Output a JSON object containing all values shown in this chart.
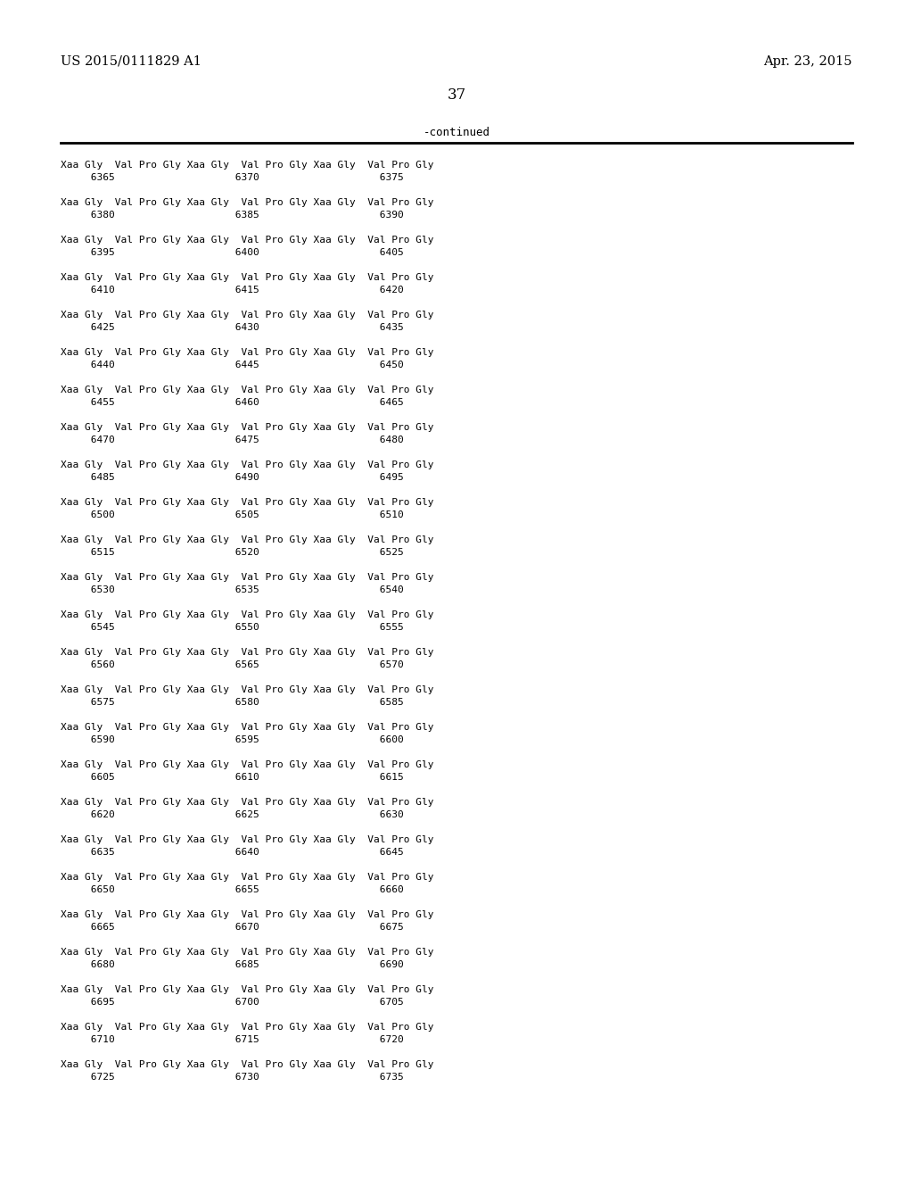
{
  "top_left": "US 2015/0111829 A1",
  "top_right": "Apr. 23, 2015",
  "page_number": "37",
  "continued_label": "-continued",
  "background_color": "#ffffff",
  "text_color": "#000000",
  "rows": [
    {
      "seq": "Xaa Gly  Val Pro Gly Xaa Gly  Val Pro Gly Xaa Gly  Val Pro Gly",
      "nums": "     6365                    6370                    6375"
    },
    {
      "seq": "Xaa Gly  Val Pro Gly Xaa Gly  Val Pro Gly Xaa Gly  Val Pro Gly",
      "nums": "     6380                    6385                    6390"
    },
    {
      "seq": "Xaa Gly  Val Pro Gly Xaa Gly  Val Pro Gly Xaa Gly  Val Pro Gly",
      "nums": "     6395                    6400                    6405"
    },
    {
      "seq": "Xaa Gly  Val Pro Gly Xaa Gly  Val Pro Gly Xaa Gly  Val Pro Gly",
      "nums": "     6410                    6415                    6420"
    },
    {
      "seq": "Xaa Gly  Val Pro Gly Xaa Gly  Val Pro Gly Xaa Gly  Val Pro Gly",
      "nums": "     6425                    6430                    6435"
    },
    {
      "seq": "Xaa Gly  Val Pro Gly Xaa Gly  Val Pro Gly Xaa Gly  Val Pro Gly",
      "nums": "     6440                    6445                    6450"
    },
    {
      "seq": "Xaa Gly  Val Pro Gly Xaa Gly  Val Pro Gly Xaa Gly  Val Pro Gly",
      "nums": "     6455                    6460                    6465"
    },
    {
      "seq": "Xaa Gly  Val Pro Gly Xaa Gly  Val Pro Gly Xaa Gly  Val Pro Gly",
      "nums": "     6470                    6475                    6480"
    },
    {
      "seq": "Xaa Gly  Val Pro Gly Xaa Gly  Val Pro Gly Xaa Gly  Val Pro Gly",
      "nums": "     6485                    6490                    6495"
    },
    {
      "seq": "Xaa Gly  Val Pro Gly Xaa Gly  Val Pro Gly Xaa Gly  Val Pro Gly",
      "nums": "     6500                    6505                    6510"
    },
    {
      "seq": "Xaa Gly  Val Pro Gly Xaa Gly  Val Pro Gly Xaa Gly  Val Pro Gly",
      "nums": "     6515                    6520                    6525"
    },
    {
      "seq": "Xaa Gly  Val Pro Gly Xaa Gly  Val Pro Gly Xaa Gly  Val Pro Gly",
      "nums": "     6530                    6535                    6540"
    },
    {
      "seq": "Xaa Gly  Val Pro Gly Xaa Gly  Val Pro Gly Xaa Gly  Val Pro Gly",
      "nums": "     6545                    6550                    6555"
    },
    {
      "seq": "Xaa Gly  Val Pro Gly Xaa Gly  Val Pro Gly Xaa Gly  Val Pro Gly",
      "nums": "     6560                    6565                    6570"
    },
    {
      "seq": "Xaa Gly  Val Pro Gly Xaa Gly  Val Pro Gly Xaa Gly  Val Pro Gly",
      "nums": "     6575                    6580                    6585"
    },
    {
      "seq": "Xaa Gly  Val Pro Gly Xaa Gly  Val Pro Gly Xaa Gly  Val Pro Gly",
      "nums": "     6590                    6595                    6600"
    },
    {
      "seq": "Xaa Gly  Val Pro Gly Xaa Gly  Val Pro Gly Xaa Gly  Val Pro Gly",
      "nums": "     6605                    6610                    6615"
    },
    {
      "seq": "Xaa Gly  Val Pro Gly Xaa Gly  Val Pro Gly Xaa Gly  Val Pro Gly",
      "nums": "     6620                    6625                    6630"
    },
    {
      "seq": "Xaa Gly  Val Pro Gly Xaa Gly  Val Pro Gly Xaa Gly  Val Pro Gly",
      "nums": "     6635                    6640                    6645"
    },
    {
      "seq": "Xaa Gly  Val Pro Gly Xaa Gly  Val Pro Gly Xaa Gly  Val Pro Gly",
      "nums": "     6650                    6655                    6660"
    },
    {
      "seq": "Xaa Gly  Val Pro Gly Xaa Gly  Val Pro Gly Xaa Gly  Val Pro Gly",
      "nums": "     6665                    6670                    6675"
    },
    {
      "seq": "Xaa Gly  Val Pro Gly Xaa Gly  Val Pro Gly Xaa Gly  Val Pro Gly",
      "nums": "     6680                    6685                    6690"
    },
    {
      "seq": "Xaa Gly  Val Pro Gly Xaa Gly  Val Pro Gly Xaa Gly  Val Pro Gly",
      "nums": "     6695                    6700                    6705"
    },
    {
      "seq": "Xaa Gly  Val Pro Gly Xaa Gly  Val Pro Gly Xaa Gly  Val Pro Gly",
      "nums": "     6710                    6715                    6720"
    },
    {
      "seq": "Xaa Gly  Val Pro Gly Xaa Gly  Val Pro Gly Xaa Gly  Val Pro Gly",
      "nums": "     6725                    6730                    6735"
    }
  ]
}
